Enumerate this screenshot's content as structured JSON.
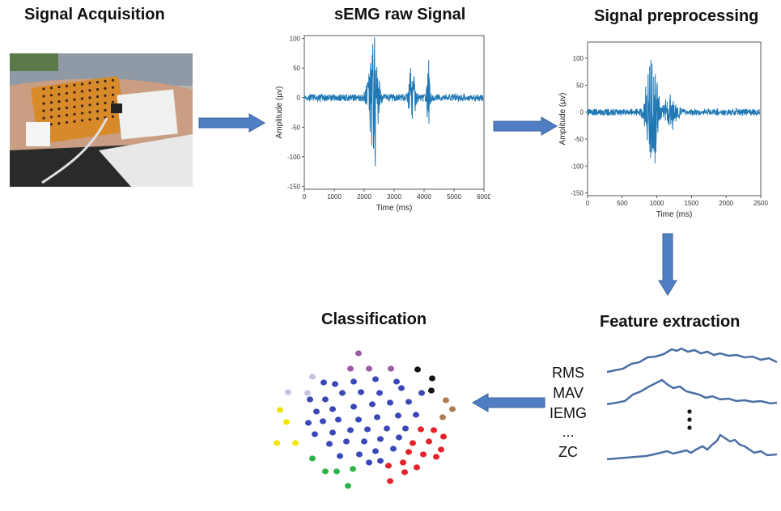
{
  "steps": {
    "acquisition": "Signal Acquisition",
    "raw": "sEMG raw Signal",
    "preprocessing": "Signal preprocessing",
    "features": "Feature extraction",
    "classification": "Classification"
  },
  "feature_names": [
    "RMS",
    "MAV",
    "IEMG",
    "...",
    "ZC"
  ],
  "colors": {
    "arrow": "#4f7ec2",
    "signal": "#1f77b4",
    "feature_line": "#4a6fa5"
  },
  "chart_data": [
    {
      "type": "line",
      "title": "sEMG raw Signal",
      "xlabel": "Time (ms)",
      "ylabel": "Amplitude (µv)",
      "xlim": [
        0,
        6000
      ],
      "ylim": [
        -155,
        105
      ],
      "xticks": [
        0,
        1000,
        2000,
        3000,
        4000,
        5000,
        6000
      ],
      "yticks": [
        100,
        50,
        0,
        -50,
        -100,
        -150
      ],
      "bursts": [
        {
          "center": 2300,
          "width": 500,
          "amp": 145
        },
        {
          "center": 3600,
          "width": 300,
          "amp": 80
        },
        {
          "center": 4150,
          "width": 150,
          "amp": 95
        }
      ]
    },
    {
      "type": "line",
      "title": "Signal preprocessing",
      "xlabel": "Time (ms)",
      "ylabel": "Amplitude (µv)",
      "xlim": [
        0,
        2500
      ],
      "ylim": [
        -155,
        130
      ],
      "xticks": [
        0,
        500,
        1000,
        1500,
        2000,
        2500
      ],
      "yticks": [
        100,
        50,
        0,
        -50,
        -100,
        -150
      ],
      "bursts": [
        {
          "center": 930,
          "width": 250,
          "amp": 150
        },
        {
          "center": 1200,
          "width": 300,
          "amp": 35
        }
      ]
    }
  ],
  "clusters": [
    {
      "color": "#9b59a6",
      "points": [
        [
          443,
          437
        ],
        [
          433,
          456
        ],
        [
          456,
          456
        ],
        [
          483,
          456
        ]
      ]
    },
    {
      "color": "#c8c2e0",
      "points": [
        [
          386,
          466
        ],
        [
          356,
          485
        ],
        [
          380,
          486
        ]
      ]
    },
    {
      "color": "#111111",
      "points": [
        [
          516,
          457
        ],
        [
          534,
          468
        ],
        [
          533,
          483
        ]
      ]
    },
    {
      "color": "#b07a50",
      "points": [
        [
          551,
          495
        ],
        [
          559,
          506
        ],
        [
          547,
          516
        ]
      ]
    },
    {
      "color": "#f2e600",
      "points": [
        [
          346,
          507
        ],
        [
          354,
          522
        ],
        [
          342,
          548
        ],
        [
          365,
          548
        ]
      ]
    },
    {
      "color": "#2db34a",
      "points": [
        [
          386,
          567
        ],
        [
          402,
          583
        ],
        [
          416,
          583
        ],
        [
          436,
          580
        ],
        [
          430,
          601
        ]
      ]
    },
    {
      "color": "#e8202a",
      "points": [
        [
          520,
          531
        ],
        [
          536,
          532
        ],
        [
          548,
          540
        ],
        [
          510,
          548
        ],
        [
          530,
          546
        ],
        [
          545,
          556
        ],
        [
          505,
          559
        ],
        [
          523,
          562
        ],
        [
          539,
          565
        ],
        [
          498,
          572
        ],
        [
          515,
          578
        ],
        [
          480,
          576
        ],
        [
          500,
          584
        ],
        [
          482,
          595
        ]
      ]
    },
    {
      "color": "#3947b8",
      "points": [
        [
          400,
          473
        ],
        [
          414,
          475
        ],
        [
          437,
          472
        ],
        [
          464,
          469
        ],
        [
          490,
          472
        ],
        [
          383,
          494
        ],
        [
          402,
          494
        ],
        [
          423,
          486
        ],
        [
          446,
          485
        ],
        [
          469,
          486
        ],
        [
          496,
          480
        ],
        [
          521,
          486
        ],
        [
          391,
          509
        ],
        [
          411,
          506
        ],
        [
          437,
          503
        ],
        [
          460,
          500
        ],
        [
          482,
          498
        ],
        [
          505,
          497
        ],
        [
          381,
          523
        ],
        [
          399,
          521
        ],
        [
          418,
          519
        ],
        [
          443,
          519
        ],
        [
          466,
          516
        ],
        [
          492,
          514
        ],
        [
          514,
          513
        ],
        [
          389,
          537
        ],
        [
          411,
          535
        ],
        [
          433,
          532
        ],
        [
          454,
          531
        ],
        [
          478,
          530
        ],
        [
          501,
          530
        ],
        [
          407,
          549
        ],
        [
          428,
          546
        ],
        [
          450,
          546
        ],
        [
          470,
          543
        ],
        [
          493,
          541
        ],
        [
          420,
          564
        ],
        [
          444,
          562
        ],
        [
          464,
          558
        ],
        [
          486,
          555
        ],
        [
          456,
          572
        ],
        [
          470,
          570
        ]
      ]
    }
  ]
}
